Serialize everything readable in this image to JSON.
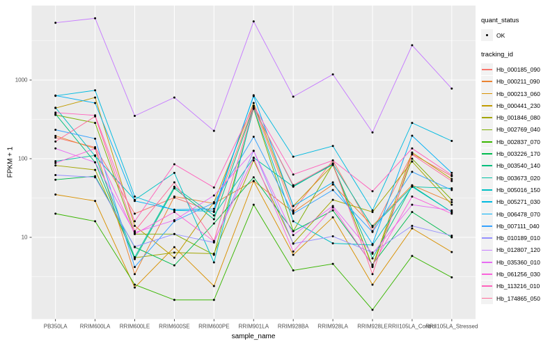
{
  "style_colors": {
    "panel_bg": "#EBEBEB",
    "grid": "#FFFFFF",
    "tick_mark": "#333333",
    "tick_label": "#4D4D4D",
    "point": "#000000",
    "legend_key_bg": "#F2F2F2"
  },
  "chart_data": {
    "type": "line",
    "title": "",
    "xlabel": "sample_name",
    "ylabel": "FPKM + 1",
    "yscale": "log10",
    "ylim": [
      0.9,
      9000
    ],
    "y_ticks": [
      10,
      100,
      1000
    ],
    "y_minor_ticks": [
      3.162,
      31.62,
      316.2,
      3162
    ],
    "grid": true,
    "legend_position": "right",
    "point_legend": {
      "title": "quant_status",
      "items": [
        "OK"
      ]
    },
    "series_legend_title": "tracking_id",
    "categories": [
      "PB350LA",
      "RRIM600LA",
      "RRIM600LE",
      "RRIM600SE",
      "RRIM600PE",
      "RRIM901LA",
      "RRIM928BA",
      "RRIM928LA",
      "RRIM928LE",
      "RRII105LA_Control",
      "RRII105LA_Stressed"
    ],
    "series": [
      {
        "name": "Hb_000185_090",
        "color": "#F8766D",
        "values": [
          185,
          140,
          20,
          32,
          21,
          470,
          22,
          95,
          12,
          115,
          60
        ]
      },
      {
        "name": "Hb_000211_090",
        "color": "#EA8331",
        "values": [
          195,
          135,
          3.4,
          33,
          27,
          52,
          21,
          47,
          14,
          46,
          28
        ]
      },
      {
        "name": "Hb_000213_060",
        "color": "#D89000",
        "values": [
          35,
          29,
          2.3,
          7.5,
          2.4,
          52,
          6,
          18,
          2.5,
          13,
          6.5
        ]
      },
      {
        "name": "Hb_000441_230",
        "color": "#C09B00",
        "values": [
          440,
          600,
          14,
          5.5,
          28,
          510,
          25,
          83,
          4.3,
          120,
          55
        ]
      },
      {
        "name": "Hb_001846_080",
        "color": "#A3A500",
        "values": [
          82,
          72,
          5.5,
          6.4,
          6.2,
          95,
          8.4,
          30,
          21,
          92,
          26
        ]
      },
      {
        "name": "Hb_002769_040",
        "color": "#7CAE00",
        "values": [
          360,
          285,
          11,
          11,
          6,
          430,
          12,
          85,
          4.2,
          100,
          30
        ]
      },
      {
        "name": "Hb_002837_070",
        "color": "#39B600",
        "values": [
          20,
          16,
          2.5,
          1.6,
          1.6,
          26,
          3.8,
          4.6,
          1.2,
          5.8,
          3.1
        ]
      },
      {
        "name": "Hb_003226_170",
        "color": "#00BB4E",
        "values": [
          54,
          60,
          7.5,
          4.4,
          15,
          58,
          12,
          22,
          4.5,
          21,
          10
        ]
      },
      {
        "name": "Hb_003540_140",
        "color": "#00BF7D",
        "values": [
          370,
          90,
          5.3,
          42,
          17,
          450,
          45,
          84,
          5.4,
          45,
          21
        ]
      },
      {
        "name": "Hb_003673_020",
        "color": "#00C1A3",
        "values": [
          93,
          110,
          5.6,
          44,
          19,
          103,
          44,
          86,
          13.5,
          44,
          42
        ]
      },
      {
        "name": "Hb_005016_150",
        "color": "#00BFC4",
        "values": [
          445,
          108,
          30,
          66,
          4.8,
          440,
          16,
          8.4,
          8,
          44,
          21
        ]
      },
      {
        "name": "Hb_005271_030",
        "color": "#00BAE0",
        "values": [
          630,
          740,
          33,
          22,
          21.5,
          640,
          106,
          145,
          22,
          285,
          168
        ]
      },
      {
        "name": "Hb_006478_070",
        "color": "#00B0F6",
        "values": [
          635,
          510,
          29,
          22.5,
          23,
          625,
          25,
          50,
          8.2,
          196,
          66
        ]
      },
      {
        "name": "Hb_007111_040",
        "color": "#35A2FF",
        "values": [
          233,
          180,
          4.2,
          16,
          27.5,
          190,
          20,
          40,
          11.7,
          68,
          40
        ]
      },
      {
        "name": "Hb_010189_010",
        "color": "#9590FF",
        "values": [
          62,
          58,
          7.6,
          11,
          8.6,
          126,
          8.3,
          10.3,
          6.4,
          14,
          10.5
        ]
      },
      {
        "name": "Hb_012807_120",
        "color": "#C77CFF",
        "values": [
          5350,
          6100,
          350,
          600,
          226,
          5560,
          615,
          1180,
          216,
          2770,
          780
        ]
      },
      {
        "name": "Hb_035360_010",
        "color": "#E76BF3",
        "values": [
          135,
          90,
          11.5,
          16.5,
          34,
          126,
          10.7,
          25,
          6.2,
          26,
          22
        ]
      },
      {
        "name": "Hb_061256_030",
        "color": "#FA62DB",
        "values": [
          88,
          135,
          11,
          21,
          8.9,
          102,
          6.6,
          24,
          4.4,
          33,
          20
        ]
      },
      {
        "name": "Hb_113216_010",
        "color": "#FF62BC",
        "values": [
          385,
          355,
          16,
          85,
          43,
          470,
          63,
          95,
          38.5,
          135,
          62
        ]
      },
      {
        "name": "Hb_174865_050",
        "color": "#FF6A98",
        "values": [
          165,
          345,
          12,
          50,
          9,
          440,
          46,
          87,
          3.4,
          113,
          52
        ]
      }
    ]
  }
}
